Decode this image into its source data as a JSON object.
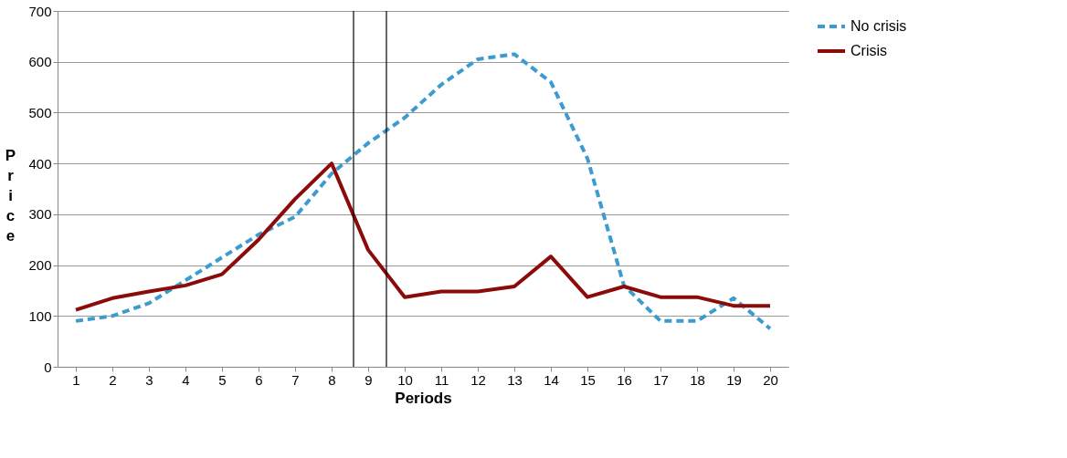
{
  "chart_data": {
    "type": "line",
    "xlabel": "Periods",
    "ylabel": "Price",
    "x": [
      1,
      2,
      3,
      4,
      5,
      6,
      7,
      8,
      9,
      10,
      11,
      12,
      13,
      14,
      15,
      16,
      17,
      18,
      19,
      20
    ],
    "xlim": [
      0.5,
      20.5
    ],
    "xticks": [
      1,
      2,
      3,
      4,
      5,
      6,
      7,
      8,
      9,
      10,
      11,
      12,
      13,
      14,
      15,
      16,
      17,
      18,
      19,
      20
    ],
    "ylim": [
      0,
      700
    ],
    "yticks": [
      0,
      100,
      200,
      300,
      400,
      500,
      600,
      700
    ],
    "grid": "y",
    "legend": "right",
    "series": [
      {
        "name": "No crisis",
        "color": "#3d9bd0",
        "line_style": "dashed",
        "values": [
          90,
          100,
          125,
          170,
          215,
          260,
          295,
          380,
          440,
          490,
          555,
          605,
          615,
          560,
          410,
          160,
          90,
          90,
          135,
          75
        ]
      },
      {
        "name": "Crisis",
        "color": "#8b0a0a",
        "line_style": "solid",
        "values": [
          112,
          135,
          148,
          160,
          182,
          250,
          330,
          400,
          230,
          137,
          148,
          148,
          158,
          217,
          137,
          158,
          137,
          137,
          120,
          120
        ]
      }
    ],
    "ref_lines": [
      {
        "axis": "x",
        "value": 8.6,
        "color": "#000000"
      },
      {
        "axis": "x",
        "value": 9.5,
        "color": "#000000"
      }
    ]
  }
}
